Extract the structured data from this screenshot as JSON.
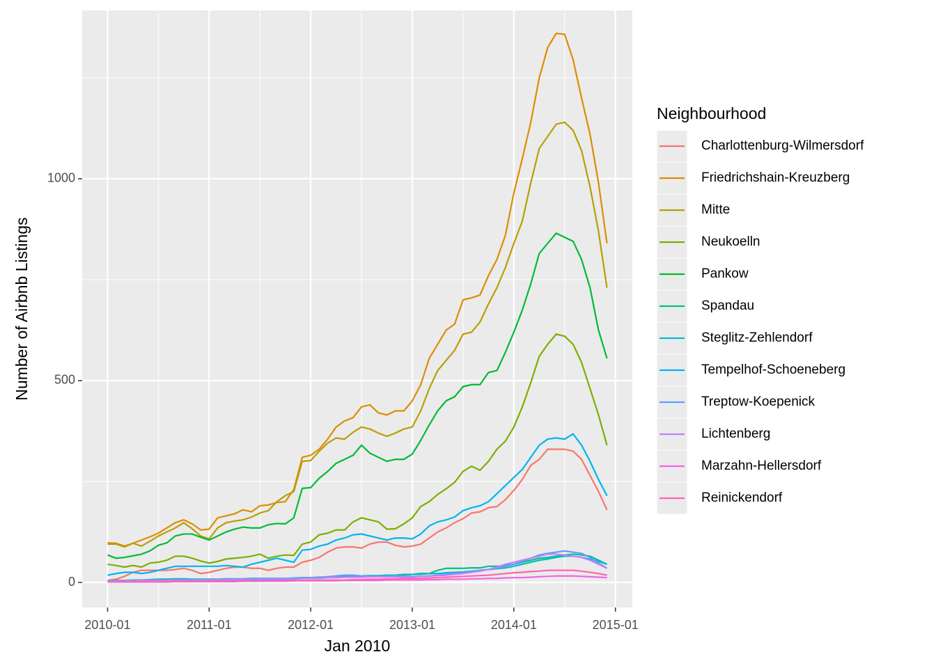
{
  "chart_data": {
    "type": "line",
    "x_label": "Jan 2010",
    "y_label": "Number of Airbnb Listings",
    "legend_title": "Neighbourhood",
    "legend_position": "right",
    "grid": true,
    "x": [
      "2010-01",
      "2010-02",
      "2010-03",
      "2010-04",
      "2010-05",
      "2010-06",
      "2010-07",
      "2010-08",
      "2010-09",
      "2010-10",
      "2010-11",
      "2010-12",
      "2011-01",
      "2011-02",
      "2011-03",
      "2011-04",
      "2011-05",
      "2011-06",
      "2011-07",
      "2011-08",
      "2011-09",
      "2011-10",
      "2011-11",
      "2011-12",
      "2012-01",
      "2012-02",
      "2012-03",
      "2012-04",
      "2012-05",
      "2012-06",
      "2012-07",
      "2012-08",
      "2012-09",
      "2012-10",
      "2012-11",
      "2012-12",
      "2013-01",
      "2013-02",
      "2013-03",
      "2013-04",
      "2013-05",
      "2013-06",
      "2013-07",
      "2013-08",
      "2013-09",
      "2013-10",
      "2013-11",
      "2013-12",
      "2014-01",
      "2014-02",
      "2014-03",
      "2014-04",
      "2014-05",
      "2014-06",
      "2014-07",
      "2014-08",
      "2014-09",
      "2014-10",
      "2014-11",
      "2014-12"
    ],
    "xlim": [
      "2009-10",
      "2015-03"
    ],
    "xticks": [
      "2010-01",
      "2011-01",
      "2012-01",
      "2013-01",
      "2014-01",
      "2015-01"
    ],
    "minor_xticks": [
      "2010-07",
      "2011-07",
      "2012-07",
      "2013-07",
      "2014-07"
    ],
    "ylim": [
      -62,
      1417
    ],
    "yticks": [
      0,
      500,
      1000
    ],
    "minor_yticks": [
      250,
      750,
      1250
    ],
    "series": [
      {
        "name": "Charlottenburg-Wilmersdorf",
        "color": "#F8766D",
        "values": [
          5,
          8,
          15,
          25,
          30,
          30,
          30,
          30,
          32,
          35,
          30,
          22,
          25,
          30,
          35,
          38,
          38,
          35,
          35,
          30,
          35,
          38,
          38,
          50,
          55,
          62,
          75,
          85,
          88,
          88,
          85,
          95,
          100,
          100,
          92,
          88,
          90,
          95,
          110,
          125,
          135,
          148,
          158,
          172,
          175,
          185,
          188,
          205,
          228,
          255,
          290,
          305,
          330,
          330,
          330,
          325,
          305,
          265,
          225,
          180
        ]
      },
      {
        "name": "Friedrichshain-Kreuzberg",
        "color": "#DE8C00",
        "values": [
          98,
          97,
          90,
          97,
          105,
          113,
          122,
          135,
          148,
          155,
          145,
          130,
          132,
          160,
          165,
          170,
          180,
          175,
          190,
          192,
          198,
          200,
          230,
          310,
          315,
          330,
          355,
          385,
          400,
          408,
          435,
          440,
          420,
          415,
          425,
          425,
          450,
          490,
          555,
          590,
          625,
          640,
          700,
          705,
          712,
          760,
          800,
          860,
          965,
          1050,
          1140,
          1250,
          1325,
          1360,
          1358,
          1295,
          1200,
          1110,
          990,
          840
        ]
      },
      {
        "name": "Mitte",
        "color": "#B79F00",
        "values": [
          95,
          95,
          88,
          97,
          90,
          102,
          115,
          125,
          135,
          148,
          133,
          115,
          108,
          135,
          148,
          152,
          155,
          162,
          172,
          178,
          200,
          215,
          225,
          300,
          302,
          325,
          345,
          358,
          355,
          372,
          385,
          380,
          370,
          362,
          370,
          380,
          385,
          425,
          480,
          525,
          550,
          575,
          615,
          620,
          645,
          690,
          730,
          780,
          840,
          895,
          990,
          1075,
          1105,
          1135,
          1140,
          1120,
          1070,
          980,
          870,
          730
        ]
      },
      {
        "name": "Neukoelln",
        "color": "#7CAE00",
        "values": [
          45,
          42,
          38,
          42,
          38,
          48,
          50,
          55,
          65,
          65,
          60,
          53,
          48,
          52,
          58,
          60,
          62,
          65,
          70,
          60,
          65,
          68,
          67,
          95,
          100,
          118,
          122,
          130,
          130,
          150,
          160,
          155,
          150,
          132,
          133,
          145,
          160,
          188,
          200,
          218,
          232,
          248,
          275,
          288,
          278,
          300,
          330,
          350,
          385,
          435,
          495,
          560,
          590,
          615,
          610,
          590,
          545,
          480,
          415,
          340
        ]
      },
      {
        "name": "Pankow",
        "color": "#00BA38",
        "values": [
          68,
          60,
          62,
          66,
          70,
          78,
          92,
          98,
          115,
          120,
          120,
          112,
          105,
          115,
          125,
          132,
          137,
          135,
          135,
          143,
          146,
          145,
          160,
          233,
          235,
          258,
          275,
          295,
          305,
          315,
          340,
          320,
          310,
          300,
          305,
          305,
          318,
          352,
          390,
          425,
          450,
          460,
          485,
          490,
          490,
          520,
          525,
          570,
          620,
          675,
          740,
          815,
          840,
          865,
          855,
          845,
          800,
          730,
          625,
          555
        ]
      },
      {
        "name": "Spandau",
        "color": "#00C08B",
        "values": [
          2,
          2,
          3,
          3,
          3,
          4,
          5,
          5,
          6,
          6,
          5,
          5,
          5,
          5,
          6,
          6,
          6,
          6,
          7,
          7,
          7,
          8,
          8,
          10,
          10,
          10,
          12,
          12,
          13,
          14,
          14,
          15,
          16,
          17,
          18,
          20,
          20,
          22,
          22,
          30,
          35,
          35,
          35,
          36,
          36,
          40,
          40,
          42,
          45,
          50,
          55,
          60,
          62,
          65,
          68,
          70,
          68,
          65,
          55,
          45
        ]
      },
      {
        "name": "Steglitz-Zehlendorf",
        "color": "#00BFC4",
        "values": [
          5,
          5,
          5,
          6,
          6,
          7,
          8,
          8,
          9,
          9,
          8,
          8,
          8,
          8,
          9,
          9,
          9,
          10,
          10,
          10,
          10,
          10,
          11,
          12,
          12,
          13,
          14,
          15,
          15,
          16,
          16,
          17,
          17,
          18,
          18,
          18,
          20,
          20,
          22,
          22,
          24,
          25,
          26,
          28,
          30,
          32,
          34,
          36,
          40,
          45,
          50,
          55,
          58,
          62,
          65,
          65,
          62,
          58,
          52,
          45
        ]
      },
      {
        "name": "Tempelhof-Schoeneberg",
        "color": "#00B4F0",
        "values": [
          18,
          22,
          25,
          25,
          22,
          25,
          30,
          35,
          40,
          40,
          40,
          40,
          40,
          40,
          42,
          40,
          38,
          45,
          50,
          55,
          60,
          55,
          50,
          80,
          82,
          90,
          95,
          105,
          110,
          118,
          120,
          115,
          110,
          105,
          110,
          110,
          108,
          120,
          140,
          150,
          155,
          162,
          178,
          185,
          190,
          200,
          220,
          240,
          260,
          280,
          310,
          340,
          355,
          358,
          355,
          368,
          340,
          300,
          255,
          215
        ]
      },
      {
        "name": "Treptow-Koepenick",
        "color": "#619CFF",
        "values": [
          3,
          3,
          3,
          3,
          3,
          4,
          4,
          4,
          5,
          5,
          5,
          5,
          5,
          5,
          6,
          6,
          6,
          6,
          7,
          7,
          7,
          8,
          8,
          10,
          12,
          12,
          14,
          16,
          18,
          18,
          16,
          15,
          15,
          14,
          14,
          14,
          14,
          15,
          16,
          18,
          20,
          22,
          24,
          26,
          30,
          32,
          35,
          40,
          45,
          52,
          60,
          68,
          72,
          75,
          78,
          75,
          72,
          62,
          48,
          35
        ]
      },
      {
        "name": "Lichtenberg",
        "color": "#C77CFF",
        "values": [
          4,
          4,
          4,
          4,
          5,
          5,
          5,
          5,
          6,
          6,
          6,
          6,
          6,
          7,
          7,
          8,
          8,
          8,
          9,
          9,
          9,
          10,
          10,
          10,
          10,
          11,
          12,
          12,
          13,
          13,
          13,
          14,
          14,
          14,
          15,
          15,
          15,
          15,
          16,
          17,
          18,
          20,
          22,
          25,
          28,
          32,
          38,
          45,
          50,
          55,
          60,
          65,
          70,
          70,
          68,
          65,
          62,
          55,
          45,
          35
        ]
      },
      {
        "name": "Marzahn-Hellersdorf",
        "color": "#F564E3",
        "values": [
          1,
          1,
          1,
          1,
          1,
          1,
          1,
          1,
          2,
          2,
          2,
          2,
          2,
          2,
          2,
          2,
          3,
          3,
          3,
          3,
          3,
          3,
          4,
          4,
          4,
          4,
          4,
          4,
          5,
          5,
          5,
          5,
          5,
          6,
          6,
          6,
          6,
          6,
          7,
          7,
          8,
          8,
          8,
          9,
          9,
          10,
          10,
          11,
          12,
          12,
          13,
          14,
          15,
          16,
          16,
          16,
          15,
          14,
          13,
          12
        ]
      },
      {
        "name": "Reinickendorf",
        "color": "#FF64B0",
        "values": [
          1,
          1,
          1,
          1,
          2,
          2,
          2,
          2,
          2,
          2,
          2,
          2,
          2,
          3,
          3,
          3,
          3,
          3,
          3,
          4,
          4,
          4,
          4,
          5,
          5,
          5,
          6,
          6,
          6,
          7,
          7,
          8,
          8,
          9,
          9,
          10,
          10,
          10,
          11,
          12,
          13,
          14,
          15,
          16,
          17,
          18,
          20,
          22,
          24,
          25,
          27,
          28,
          30,
          30,
          30,
          30,
          28,
          25,
          22,
          18
        ]
      }
    ]
  }
}
